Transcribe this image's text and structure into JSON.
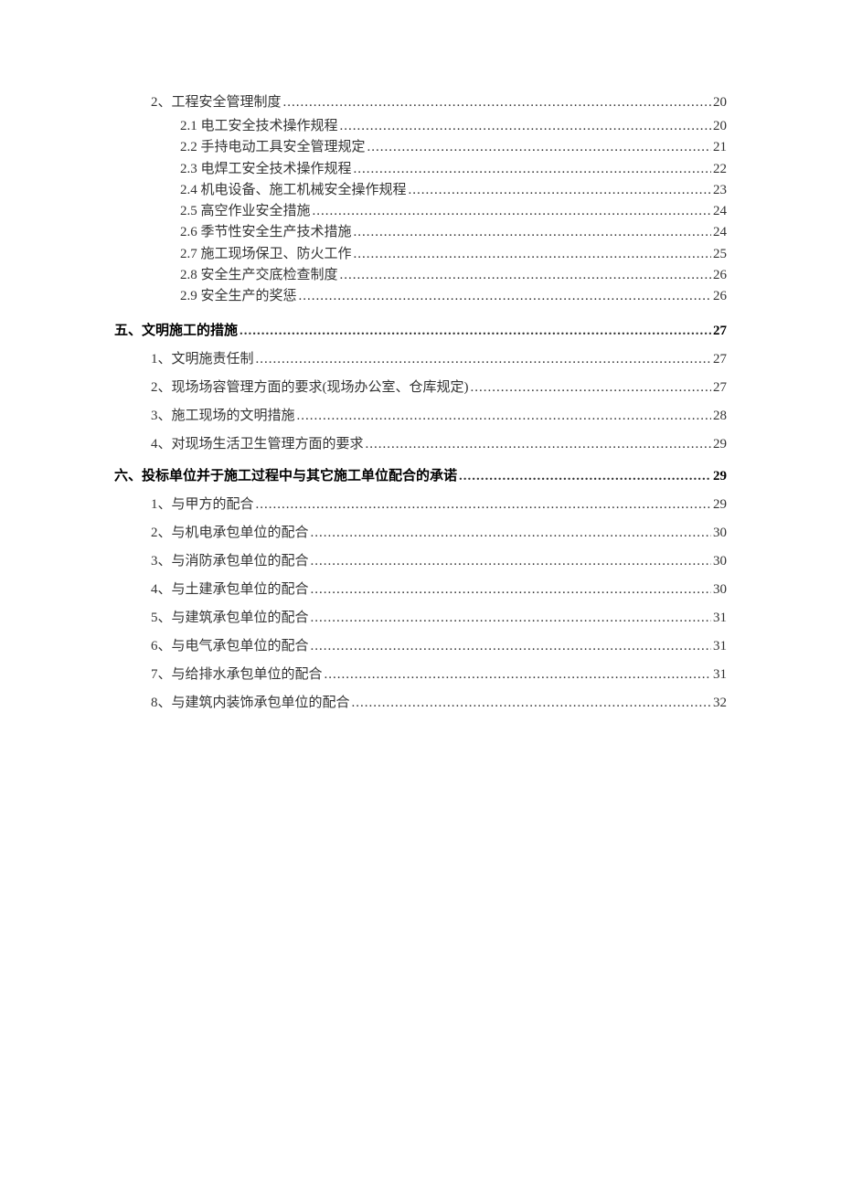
{
  "entries": [
    {
      "level": 2,
      "text": "2、工程安全管理制度",
      "page": "20",
      "firstOnPage": true
    },
    {
      "level": 3,
      "text": "2.1 电工安全技术操作规程",
      "page": "20"
    },
    {
      "level": 3,
      "text": "2.2 手持电动工具安全管理规定",
      "page": "21"
    },
    {
      "level": 3,
      "text": "2.3 电焊工安全技术操作规程",
      "page": "22"
    },
    {
      "level": 3,
      "text": "2.4 机电设备、施工机械安全操作规程",
      "page": "23"
    },
    {
      "level": 3,
      "text": "2.5 高空作业安全措施",
      "page": "24"
    },
    {
      "level": 3,
      "text": "2.6 季节性安全生产技术措施",
      "page": "24"
    },
    {
      "level": 3,
      "text": "2.7 施工现场保卫、防火工作",
      "page": "25"
    },
    {
      "level": 3,
      "text": "2.8 安全生产交底检查制度",
      "page": "26"
    },
    {
      "level": 3,
      "text": "2.9 安全生产的奖惩",
      "page": "26"
    },
    {
      "level": 1,
      "text": "五、文明施工的措施",
      "page": "27"
    },
    {
      "level": 2,
      "text": "1、文明施责任制",
      "page": "27"
    },
    {
      "level": 2,
      "text": "2、现场场容管理方面的要求(现场办公室、仓库规定)",
      "page": "27"
    },
    {
      "level": 2,
      "text": "3、施工现场的文明措施",
      "page": "28"
    },
    {
      "level": 2,
      "text": "4、对现场生活卫生管理方面的要求",
      "page": "29"
    },
    {
      "level": 1,
      "text": "六、投标单位并于施工过程中与其它施工单位配合的承诺",
      "page": "29"
    },
    {
      "level": 2,
      "text": "1、与甲方的配合",
      "page": "29"
    },
    {
      "level": 2,
      "text": "2、与机电承包单位的配合",
      "page": "30"
    },
    {
      "level": 2,
      "text": "3、与消防承包单位的配合",
      "page": "30"
    },
    {
      "level": 2,
      "text": "4、与土建承包单位的配合",
      "page": "30"
    },
    {
      "level": 2,
      "text": "5、与建筑承包单位的配合",
      "page": "31"
    },
    {
      "level": 2,
      "text": "6、与电气承包单位的配合",
      "page": "31"
    },
    {
      "level": 2,
      "text": "7、与给排水承包单位的配合",
      "page": "31"
    },
    {
      "level": 2,
      "text": "8、与建筑内装饰承包单位的配合",
      "page": "32"
    }
  ]
}
